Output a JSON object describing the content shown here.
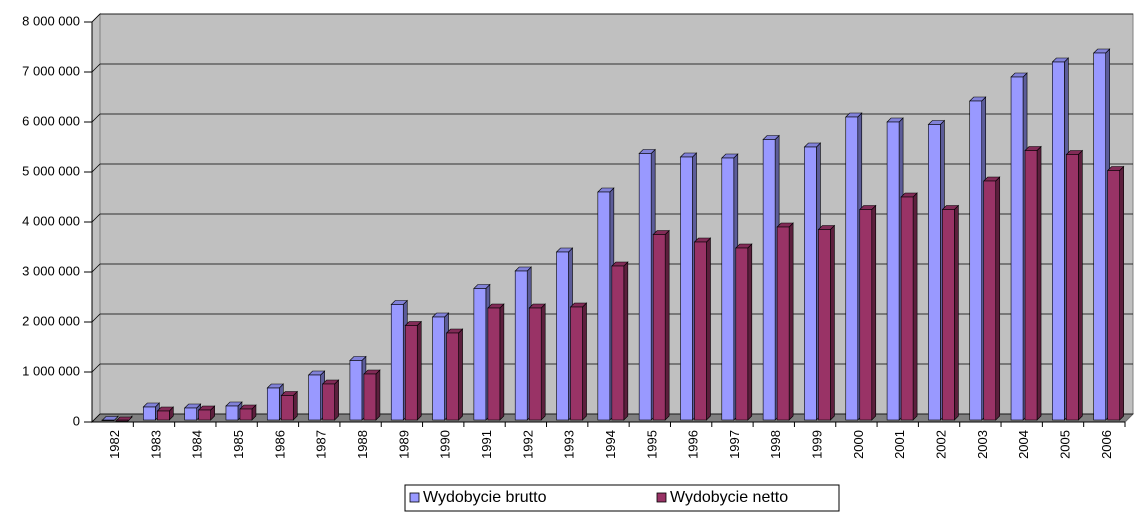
{
  "chart_data": {
    "type": "bar3d",
    "categories": [
      "1982",
      "1983",
      "1984",
      "1985",
      "1986",
      "1987",
      "1988",
      "1989",
      "1990",
      "1991",
      "1992",
      "1993",
      "1994",
      "1995",
      "1996",
      "1997",
      "1998",
      "1999",
      "2000",
      "2001",
      "2002",
      "2003",
      "2004",
      "2005",
      "2006"
    ],
    "series": [
      {
        "name": "Wydobycie brutto",
        "color": "#9999ff",
        "values": [
          30000,
          300000,
          280000,
          320000,
          680000,
          940000,
          1230000,
          2350000,
          2100000,
          2670000,
          3020000,
          3400000,
          4600000,
          5370000,
          5300000,
          5280000,
          5650000,
          5500000,
          6100000,
          6000000,
          5950000,
          6420000,
          6900000,
          7200000,
          7380000
        ]
      },
      {
        "name": "Wydobycie netto",
        "color": "#993366",
        "values": [
          20000,
          220000,
          240000,
          260000,
          530000,
          760000,
          960000,
          1930000,
          1780000,
          2280000,
          2280000,
          2300000,
          3120000,
          3750000,
          3600000,
          3480000,
          3900000,
          3850000,
          4250000,
          4500000,
          4250000,
          4820000,
          5430000,
          5350000,
          5030000
        ]
      }
    ],
    "ylim": [
      0,
      8000000
    ],
    "yticks": [
      0,
      {
        "value": 1000000,
        "label": "1 000 000"
      },
      {
        "value": 2000000,
        "label": "2 000 000"
      },
      {
        "value": 3000000,
        "label": "3 000 000"
      },
      {
        "value": 4000000,
        "label": "4 000 000"
      },
      {
        "value": 5000000,
        "label": "5 000 000"
      },
      {
        "value": 6000000,
        "label": "6 000 000"
      },
      {
        "value": 7000000,
        "label": "7 000 000"
      },
      {
        "value": 8000000,
        "label": "8 000 000"
      }
    ],
    "grid": true,
    "legend": "bottom"
  }
}
